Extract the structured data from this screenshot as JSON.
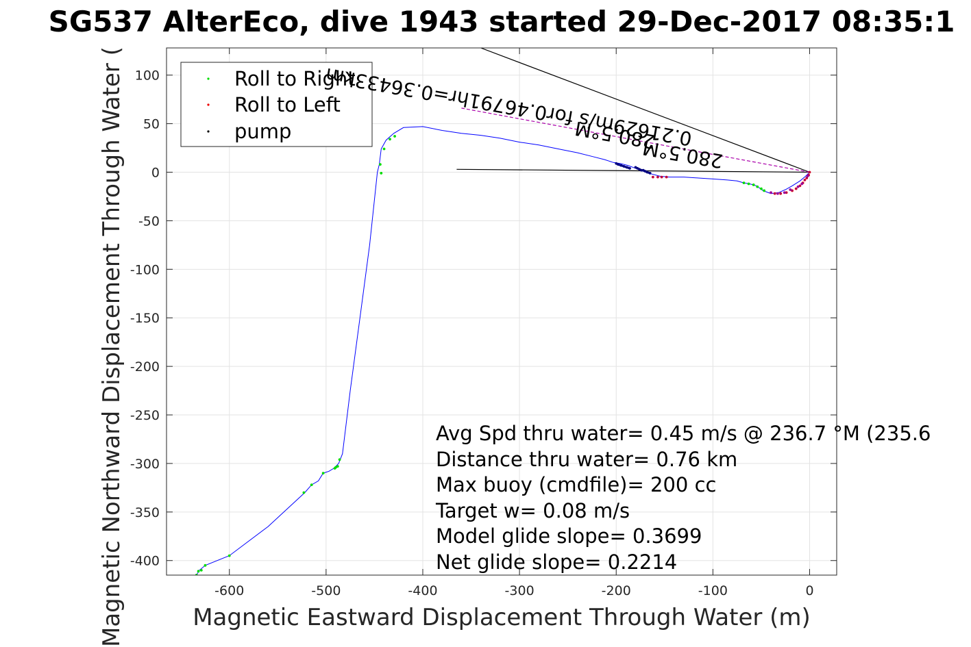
{
  "chart_data": {
    "type": "scatter",
    "title": "SG537 AlterEco, dive 1943 started 29-Dec-2017 08:35:1",
    "xlabel": "Magnetic Eastward Displacement Through Water (m)",
    "ylabel": "Magnetic Northward Displacement Through Water (",
    "xlim": [
      -665,
      28
    ],
    "ylim": [
      -415,
      128
    ],
    "xticks": [
      -600,
      -500,
      -400,
      -300,
      -200,
      -100,
      0
    ],
    "yticks": [
      100,
      50,
      0,
      -50,
      -100,
      -150,
      -200,
      -250,
      -300,
      -350,
      -400
    ],
    "grid": true,
    "legend_position": "top-left",
    "legend": [
      {
        "label": "Roll to Right",
        "color": "#00dd00"
      },
      {
        "label": "Roll to Left",
        "color": "#ee0000"
      },
      {
        "label": "pump",
        "color": "#000000"
      }
    ],
    "series": [
      {
        "style": "track",
        "color": "#0000ff",
        "x": [
          0,
          -4,
          -10,
          -18,
          -25,
          -32,
          -40,
          -48,
          -55,
          -62,
          -68,
          -75,
          -85,
          -100,
          -115,
          -130,
          -145,
          -155,
          -163,
          -172,
          -180,
          -188,
          -196,
          -203,
          -212,
          -224,
          -240,
          -260,
          -280,
          -300,
          -320,
          -340,
          -360,
          -380,
          -400,
          -420,
          -430,
          -438,
          -443,
          -445,
          -447,
          -455,
          -465,
          -475,
          -483,
          -487,
          -490,
          -492,
          -497,
          -503,
          -508,
          -515,
          -522,
          -560,
          -600,
          -625,
          -631,
          -634
        ],
        "y": [
          0,
          -4,
          -9,
          -14,
          -18,
          -21,
          -22,
          -19,
          -14,
          -12,
          -11,
          -9,
          -8,
          -7,
          -6,
          -5,
          -5,
          -4,
          -2,
          1,
          4,
          7,
          9,
          10,
          13,
          16,
          20,
          24,
          28,
          31,
          35,
          38,
          40,
          43,
          47,
          46,
          40,
          33,
          24,
          8,
          0,
          -75,
          -150,
          -225,
          -290,
          -300,
          -303,
          -305,
          -308,
          -310,
          -318,
          -322,
          -330,
          -365,
          -395,
          -405,
          -410,
          -415
        ]
      },
      {
        "style": "points",
        "name": "Roll to Right",
        "color": "#00dd00",
        "x": [
          -68,
          -63,
          -58,
          -54,
          -50,
          -47,
          -443,
          -444,
          -440,
          -434,
          -429,
          -486,
          -488,
          -490,
          -491,
          -503,
          -515,
          -523,
          -600,
          -625,
          -629,
          -632,
          -634
        ],
        "y": [
          -11,
          -12,
          -13,
          -15,
          -17,
          -19,
          -1,
          8,
          24,
          34,
          37,
          -296,
          -303,
          -304,
          -305,
          -310,
          -322,
          -330,
          -395,
          -405,
          -410,
          -411,
          -415
        ]
      },
      {
        "style": "points",
        "name": "Roll to Left",
        "color": "#ee0000",
        "x": [
          -36,
          -30,
          -24,
          -18,
          -14,
          -10,
          -7,
          -5,
          -3,
          -1,
          0,
          -148,
          -153,
          -157,
          -162
        ],
        "y": [
          -22,
          -22,
          -21,
          -19,
          -17,
          -14,
          -11,
          -8,
          -6,
          -3,
          0,
          -5,
          -5,
          -5,
          -5
        ],
        "x2": [
          -40,
          -33,
          -26,
          -20,
          -12,
          -8,
          -2
        ],
        "y2": [
          -21,
          -22,
          -21,
          -18,
          -15,
          -12,
          -4
        ]
      },
      {
        "style": "points",
        "name": "pump",
        "color": "#000080",
        "x": [
          -200,
          -198,
          -195,
          -192,
          -189,
          -186,
          -180,
          -178,
          -176,
          -174,
          -172,
          -170,
          -168,
          -165
        ],
        "y": [
          9,
          8,
          7,
          6,
          5,
          4,
          5,
          4,
          3,
          2,
          2,
          1,
          0,
          -1
        ]
      },
      {
        "style": "line",
        "name": "heading-line-1",
        "color": "#000000",
        "x": [
          0,
          -340
        ],
        "y": [
          0,
          128
        ]
      },
      {
        "style": "line",
        "name": "heading-line-2",
        "color": "#000000",
        "x": [
          0,
          -365
        ],
        "y": [
          0,
          3
        ]
      },
      {
        "style": "dashed",
        "name": "current-line",
        "color": "#aa00aa",
        "x": [
          0,
          -360
        ],
        "y": [
          0,
          66
        ]
      }
    ],
    "annotations": [
      {
        "text": "280.5°M",
        "x": -130,
        "y": 25,
        "rotation": 190
      },
      {
        "text": "0.21629m/s for0.46791hr=0.36433km",
        "x": -310,
        "y": 74,
        "rotation": 190
      },
      {
        "text": "280.5°M",
        "x": -200,
        "y": 45,
        "rotation": 190
      }
    ],
    "stats": [
      "Avg Spd thru water=  0.45 m/s @ 236.7 °M (235.6",
      "Distance thru water=  0.76 km",
      "Max buoy (cmdfile)= 200 cc",
      "Target w= 0.08 m/s",
      "Model glide slope= 0.3699",
      "Net glide slope= 0.2214"
    ]
  }
}
